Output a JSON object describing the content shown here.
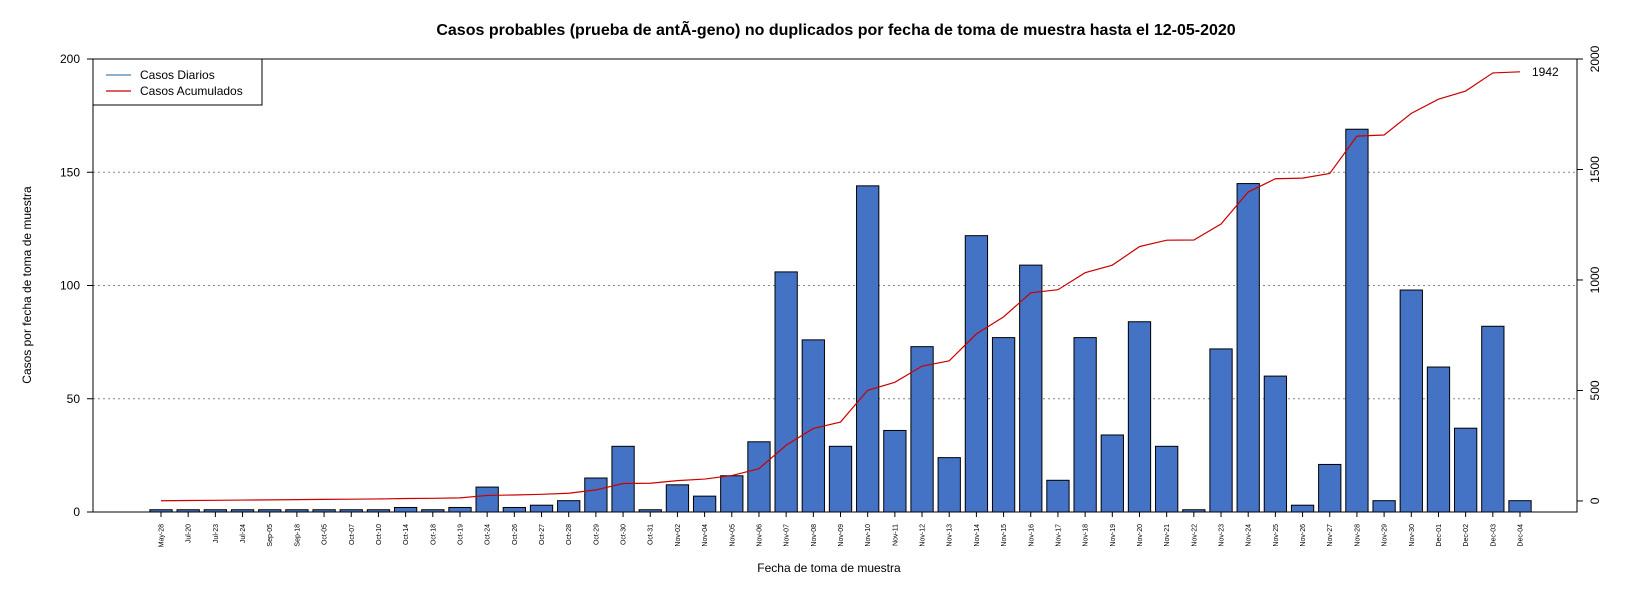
{
  "chart_data": {
    "type": "bar",
    "title": "Casos probables (prueba de antÃ-geno) no duplicados por fecha de toma de muestra hasta el 12-05-2020",
    "xlabel": "Fecha de toma de muestra",
    "ylabel": "Casos por fecha de toma de muestra",
    "ylim": [
      0,
      200
    ],
    "y_ticks": [
      0,
      50,
      100,
      150,
      200
    ],
    "y2lim": [
      -50,
      2000
    ],
    "y2_ticks": [
      0,
      500,
      1000,
      1500,
      2000
    ],
    "grid": "horizontal dotted",
    "legend_position": "top-left",
    "end_label": "1942",
    "categories": [
      "May-28",
      "Jul-20",
      "Jul-23",
      "Jul-24",
      "Sep-05",
      "Sep-18",
      "Oct-05",
      "Oct-07",
      "Oct-10",
      "Oct-14",
      "Oct-18",
      "Oct-19",
      "Oct-24",
      "Oct-26",
      "Oct-27",
      "Oct-28",
      "Oct-29",
      "Oct-30",
      "Oct-31",
      "Nov-02",
      "Nov-04",
      "Nov-05",
      "Nov-06",
      "Nov-07",
      "Nov-08",
      "Nov-09",
      "Nov-10",
      "Nov-11",
      "Nov-12",
      "Nov-13",
      "Nov-14",
      "Nov-15",
      "Nov-16",
      "Nov-17",
      "Nov-18",
      "Nov-19",
      "Nov-20",
      "Nov-21",
      "Nov-22",
      "Nov-23",
      "Nov-24",
      "Nov-25",
      "Nov-26",
      "Nov-27",
      "Nov-28",
      "Nov-29",
      "Nov-30",
      "Dec-01",
      "Dec-02",
      "Dec-03",
      "Dec-04"
    ],
    "series": [
      {
        "name": "Casos Diarios",
        "type": "bar",
        "axis": "left",
        "color": "#4472C4",
        "values": [
          1,
          1,
          1,
          1,
          1,
          1,
          1,
          1,
          1,
          2,
          1,
          2,
          11,
          2,
          3,
          5,
          15,
          29,
          1,
          12,
          7,
          16,
          31,
          106,
          76,
          29,
          144,
          36,
          73,
          24,
          122,
          77,
          109,
          14,
          77,
          34,
          84,
          29,
          1,
          72,
          145,
          60,
          3,
          21,
          169,
          5,
          98,
          64,
          37,
          82,
          5
        ]
      },
      {
        "name": "Casos Acumulados",
        "type": "line",
        "axis": "right",
        "color": "#CC0000",
        "values": [
          1,
          2,
          3,
          4,
          5,
          6,
          7,
          8,
          9,
          11,
          12,
          14,
          25,
          27,
          30,
          35,
          50,
          79,
          80,
          92,
          99,
          115,
          146,
          252,
          328,
          357,
          501,
          537,
          610,
          634,
          756,
          833,
          942,
          956,
          1033,
          1067,
          1151,
          1180,
          1181,
          1253,
          1398,
          1458,
          1461,
          1482,
          1651,
          1656,
          1754,
          1818,
          1855,
          1937,
          1942
        ]
      }
    ]
  },
  "colors": {
    "bar_fill": "#4472C4",
    "bar_stroke": "#000000",
    "line": "#CC0000",
    "legend_line_daily": "#4682B4",
    "grid": "#888888"
  }
}
